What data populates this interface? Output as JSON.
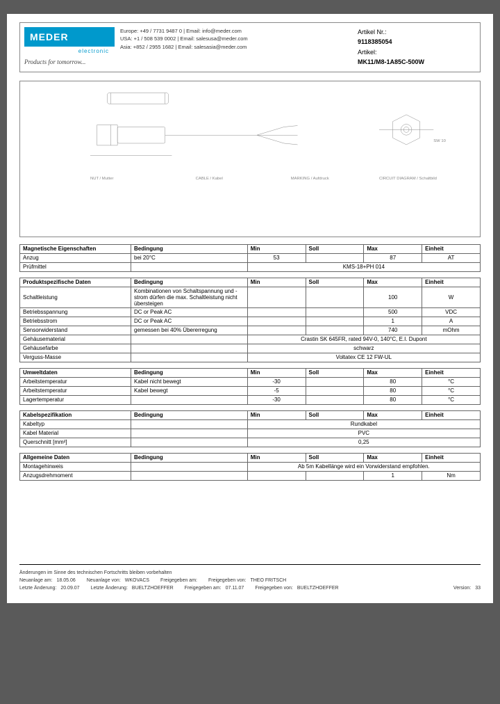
{
  "logo": {
    "main": "MEDER",
    "sub": "electronic",
    "slogan": "Products for tomorrow..."
  },
  "contacts": {
    "europe": "Europe: +49 / 7731 9487 0 | Email: info@meder.com",
    "usa": "USA: +1 / 508 539 0002 | Email: salesusa@meder.com",
    "asia": "Asia: +852 / 2955 1682 | Email: salesasia@meder.com"
  },
  "artikel": {
    "nr_label": "Artikel Nr.:",
    "nr": "9118385054",
    "name_label": "Artikel:",
    "name": "MK11/M8-1A85C-500W"
  },
  "drawing": {
    "labels": {
      "nut": "NUT / Mutter",
      "cable": "CABLE / Kabel",
      "marking": "MARKING / Aufdruck",
      "circuit": "CIRCUIT DIAGRAM / Schaltbild",
      "sw": "SW 10"
    }
  },
  "headers": {
    "bedingung": "Bedingung",
    "min": "Min",
    "soll": "Soll",
    "max": "Max",
    "einheit": "Einheit"
  },
  "sections": {
    "magnetic": {
      "title": "Magnetische Eigenschaften",
      "rows": [
        {
          "param": "Anzug",
          "cond": "bei 20°C",
          "min": "53",
          "soll": "",
          "max": "87",
          "unit": "AT"
        },
        {
          "param": "Prüfmittel",
          "cond": "",
          "span": "KMS-18+PH 014"
        }
      ]
    },
    "product": {
      "title": "Produktspezifische Daten",
      "rows": [
        {
          "param": "Schaltleistung",
          "cond": "Kombinationen von Schaltspannung und -strom dürfen die max. Schaltleistung nicht übersteigen",
          "min": "",
          "soll": "",
          "max": "100",
          "unit": "W"
        },
        {
          "param": "Betriebsspannung",
          "cond": "DC or Peak AC",
          "min": "",
          "soll": "",
          "max": "500",
          "unit": "VDC"
        },
        {
          "param": "Betriebsstrom",
          "cond": "DC or Peak AC",
          "min": "",
          "soll": "",
          "max": "1",
          "unit": "A"
        },
        {
          "param": "Sensorwiderstand",
          "cond": "gemessen bei 40% Übererregung",
          "min": "",
          "soll": "",
          "max": "740",
          "unit": "mOhm"
        },
        {
          "param": "Gehäusematerial",
          "cond": "",
          "span": "Crastin SK 645FR, rated 94V-0, 140°C, E.I. Dupont"
        },
        {
          "param": "Gehäusefarbe",
          "cond": "",
          "span": "schwarz"
        },
        {
          "param": "Verguss-Masse",
          "cond": "",
          "span": "Voltatex CE 12 FW-UL"
        }
      ]
    },
    "env": {
      "title": "Umweltdaten",
      "rows": [
        {
          "param": "Arbeitstemperatur",
          "cond": "Kabel nicht bewegt",
          "min": "-30",
          "soll": "",
          "max": "80",
          "unit": "°C"
        },
        {
          "param": "Arbeitstemperatur",
          "cond": "Kabel bewegt",
          "min": "-5",
          "soll": "",
          "max": "80",
          "unit": "°C"
        },
        {
          "param": "Lagertemperatur",
          "cond": "",
          "min": "-30",
          "soll": "",
          "max": "80",
          "unit": "°C"
        }
      ]
    },
    "cable": {
      "title": "Kabelspezifikation",
      "rows": [
        {
          "param": "Kabeltyp",
          "cond": "",
          "span": "Rundkabel"
        },
        {
          "param": "Kabel Material",
          "cond": "",
          "span": "PVC"
        },
        {
          "param": "Querschnitt [mm²]",
          "cond": "",
          "span": "0,25"
        }
      ]
    },
    "general": {
      "title": "Allgemeine Daten",
      "rows": [
        {
          "param": "Montagehinweis",
          "cond": "",
          "span": "Ab 5m Kabellänge wird ein Vorwiderstand empfohlen."
        },
        {
          "param": "Anzugsdrehmoment",
          "cond": "",
          "min": "",
          "soll": "",
          "max": "1",
          "unit": "Nm"
        }
      ]
    }
  },
  "footer": {
    "note": "Änderungen im Sinne des technischen Fortschritts bleiben vorbehalten",
    "row1": {
      "neuanlage_lbl": "Neuanlage am:",
      "neuanlage_date": "18.05.06",
      "neuanlage_von_lbl": "Neuanlage von:",
      "neuanlage_von": "WKOVACS",
      "freigegeben_lbl": "Freigegeben am:",
      "freigegeben_von_lbl": "Freigegeben von:",
      "freigegeben_von": "THEO FRITSCH"
    },
    "row2": {
      "letzte_lbl": "Letzte Änderung:",
      "letzte_date": "20.09.07",
      "letzte_von_lbl": "Letzte Änderung:",
      "letzte_von": "BUELTZHOEFFER",
      "freigegeben_am_lbl": "Freigegeben am:",
      "freigegeben_am": "07.11.07",
      "freigegeben_von_lbl": "Freigegeben von:",
      "freigegeben_von": "BUELTZHOEFFER",
      "version_lbl": "Version:",
      "version": "33"
    }
  }
}
